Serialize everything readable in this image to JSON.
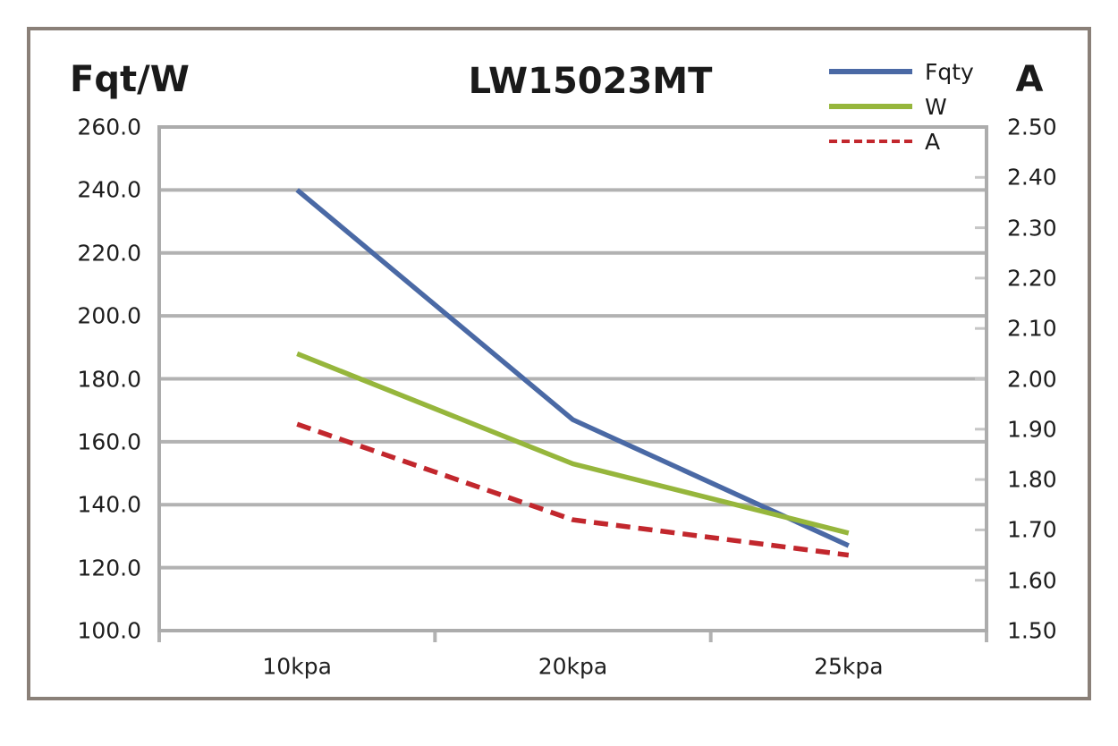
{
  "chart_data": {
    "type": "line",
    "title": "LW15023MT",
    "categories": [
      "10kpa",
      "20kpa",
      "25kpa"
    ],
    "series": [
      {
        "name": "Fqty",
        "axis": "left",
        "color": "#4a69a5",
        "dash": false,
        "values": [
          240,
          167,
          127
        ]
      },
      {
        "name": "W",
        "axis": "left",
        "color": "#96b63c",
        "dash": false,
        "values": [
          188,
          153,
          131
        ]
      },
      {
        "name": "A",
        "axis": "right",
        "color": "#c2272d",
        "dash": true,
        "values": [
          1.91,
          1.72,
          1.65
        ]
      }
    ],
    "left_axis": {
      "title": "Fqt/W",
      "min": 100,
      "max": 260,
      "step": 20,
      "tick_labels": [
        "260.0",
        "240.0",
        "220.0",
        "200.0",
        "180.0",
        "160.0",
        "140.0",
        "120.0",
        "100.0"
      ]
    },
    "right_axis": {
      "title": "A",
      "min": 1.5,
      "max": 2.5,
      "step": 0.1,
      "tick_labels": [
        "2.50",
        "2.40",
        "2.30",
        "2.20",
        "2.10",
        "2.00",
        "1.90",
        "1.80",
        "1.70",
        "1.60",
        "1.50"
      ]
    },
    "grid": "horizontal-major",
    "legend_position": "top-right",
    "colors": {
      "gridline": "#b2b2b2",
      "plot_border": "#acacac",
      "minor_tick": "#c6c6c6",
      "outer_border": "#8a8078",
      "text": "#1a1a1a"
    }
  }
}
